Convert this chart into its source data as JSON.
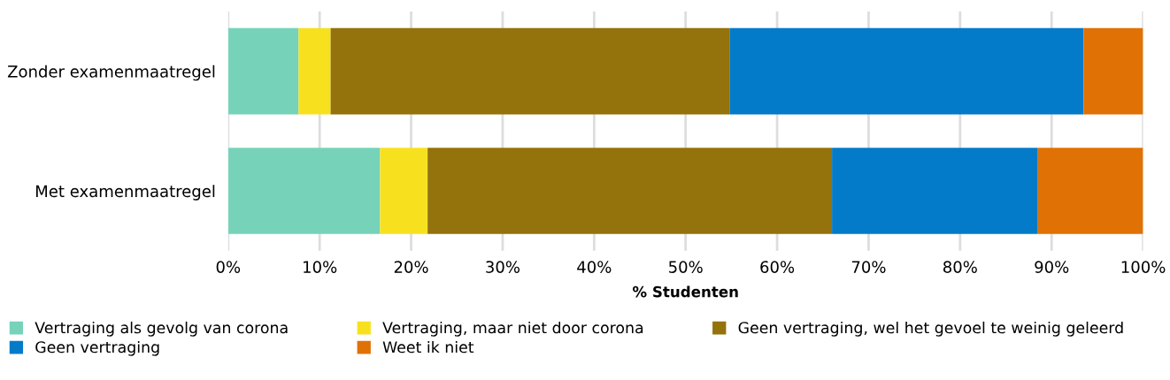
{
  "chart_data": {
    "type": "bar",
    "orientation": "horizontal",
    "stacked": true,
    "xlabel": "% Studenten",
    "categories": [
      "Zonder examenmaatregel",
      "Met examenmaatregel"
    ],
    "series": [
      {
        "name": "Vertraging als gevolg van corona",
        "color": "#76d3b9",
        "values": [
          7.7,
          16.6
        ]
      },
      {
        "name": "Vertraging, maar niet door corona",
        "color": "#f7e11f",
        "values": [
          3.5,
          5.2
        ]
      },
      {
        "name": "Geen vertraging, wel het gevoel te weinig geleerd",
        "color": "#94720c",
        "values": [
          43.6,
          44.2
        ]
      },
      {
        "name": "Geen vertraging",
        "color": "#047bc8",
        "values": [
          38.7,
          22.5
        ]
      },
      {
        "name": "Weet ik niet",
        "color": "#e07104",
        "values": [
          6.5,
          11.5
        ]
      }
    ],
    "xlim": [
      0,
      100
    ],
    "xticks": [
      {
        "value": 0,
        "label": "0%"
      },
      {
        "value": 10,
        "label": "10%"
      },
      {
        "value": 20,
        "label": "20%"
      },
      {
        "value": 30,
        "label": "30%"
      },
      {
        "value": 40,
        "label": "40%"
      },
      {
        "value": 50,
        "label": "50%"
      },
      {
        "value": 60,
        "label": "60%"
      },
      {
        "value": 70,
        "label": "70%"
      },
      {
        "value": 80,
        "label": "80%"
      },
      {
        "value": 90,
        "label": "90%"
      },
      {
        "value": 100,
        "label": "100%"
      }
    ],
    "grid": "x",
    "legend": "bottom"
  }
}
